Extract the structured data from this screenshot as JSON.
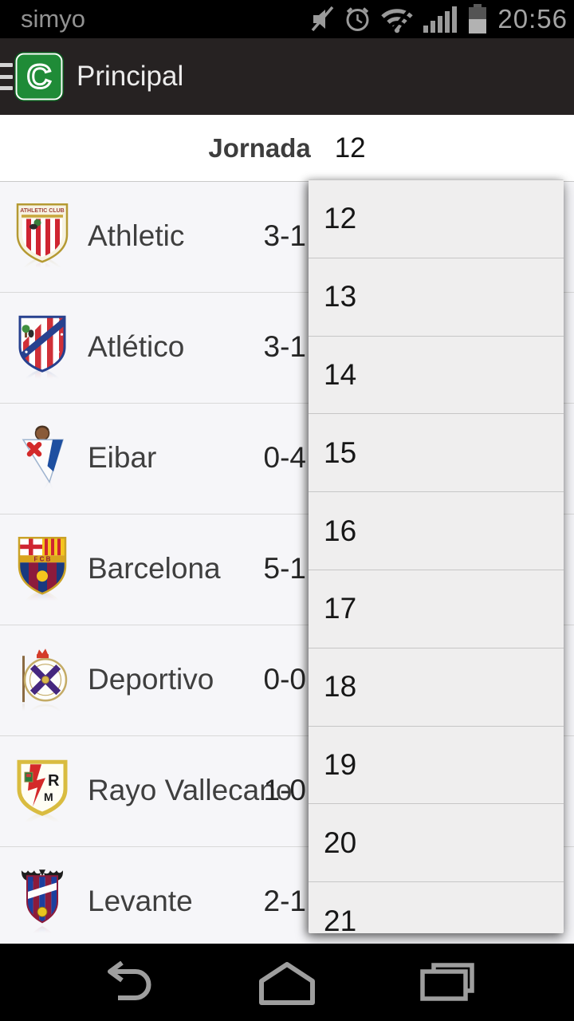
{
  "colors": {
    "app_bar_bg": "#262222",
    "logo_green": "#1f8b37",
    "row_bg": "#f6f6f9",
    "dropdown_bg": "#efeeee",
    "status_icon_gray": "#9a9a9a",
    "nav_icon_gray": "#9e9e9e"
  },
  "status_bar": {
    "carrier": "simyo",
    "time": "20:56",
    "icons": [
      "mute-icon",
      "alarm-icon",
      "wifi-icon",
      "signal-icon",
      "battery-icon"
    ]
  },
  "app_bar": {
    "title": "Principal",
    "logo_letter": "C"
  },
  "jornada": {
    "label": "Jornada",
    "selected": "12"
  },
  "matches": [
    {
      "team": "Athletic",
      "score": "3-1",
      "crest": "athletic"
    },
    {
      "team": "Atlético",
      "score": "3-1",
      "crest": "atletico"
    },
    {
      "team": "Eibar",
      "score": "0-4",
      "crest": "eibar"
    },
    {
      "team": "Barcelona",
      "score": "5-1",
      "crest": "barcelona"
    },
    {
      "team": "Deportivo",
      "score": "0-0",
      "crest": "deportivo"
    },
    {
      "team": "Rayo Vallecano",
      "score": "1-0",
      "crest": "rayo"
    },
    {
      "team": "Levante",
      "score": "2-1",
      "crest": "levante"
    }
  ],
  "dropdown": {
    "options": [
      "12",
      "13",
      "14",
      "15",
      "16",
      "17",
      "18",
      "19",
      "20",
      "21"
    ]
  },
  "nav_bar": {
    "icons": [
      "back-icon",
      "home-icon",
      "recents-icon"
    ]
  }
}
